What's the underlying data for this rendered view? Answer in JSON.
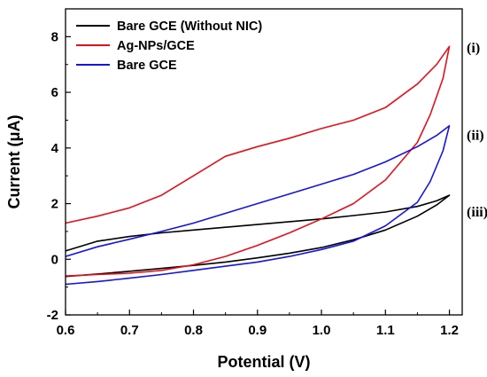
{
  "chart_data": {
    "type": "line",
    "title": "",
    "xlabel": "Potential (V)",
    "ylabel": "Current (μA)",
    "xlim": [
      0.6,
      1.22
    ],
    "ylim": [
      -2,
      9
    ],
    "xticks": [
      0.6,
      0.7,
      0.8,
      0.9,
      1.0,
      1.1,
      1.2
    ],
    "xtick_labels": [
      "0.6",
      "0.7",
      "0.8",
      "0.9",
      "1.0",
      "1.1",
      "1.2"
    ],
    "yticks": [
      -2,
      0,
      2,
      4,
      6,
      8
    ],
    "ytick_labels": [
      "-2",
      "0",
      "2",
      "4",
      "6",
      "8"
    ],
    "grid": false,
    "legend": "top-left",
    "series": [
      {
        "name": "Bare GCE (Without NIC)",
        "color": "#000000",
        "x": [
          0.6,
          0.65,
          0.7,
          0.75,
          0.8,
          0.85,
          0.9,
          0.95,
          1.0,
          1.05,
          1.1,
          1.15,
          1.18,
          1.2,
          1.18,
          1.15,
          1.1,
          1.05,
          1.0,
          0.95,
          0.9,
          0.85,
          0.8,
          0.75,
          0.7,
          0.65,
          0.6
        ],
        "y": [
          0.3,
          0.65,
          0.82,
          0.95,
          1.05,
          1.15,
          1.25,
          1.35,
          1.45,
          1.57,
          1.7,
          1.9,
          2.1,
          2.3,
          1.95,
          1.55,
          1.05,
          0.7,
          0.42,
          0.22,
          0.05,
          -0.1,
          -0.22,
          -0.33,
          -0.43,
          -0.53,
          -0.62
        ]
      },
      {
        "name": "Ag-NPs/GCE",
        "color": "#e8101a",
        "x": [
          0.6,
          0.65,
          0.7,
          0.75,
          0.8,
          0.85,
          0.9,
          0.95,
          1.0,
          1.05,
          1.1,
          1.15,
          1.18,
          1.2,
          1.19,
          1.17,
          1.15,
          1.1,
          1.05,
          1.0,
          0.95,
          0.9,
          0.85,
          0.8,
          0.75,
          0.7,
          0.65,
          0.6
        ],
        "y": [
          1.3,
          1.55,
          1.85,
          2.3,
          3.0,
          3.7,
          4.05,
          4.35,
          4.7,
          5.0,
          5.45,
          6.3,
          7.0,
          7.65,
          6.5,
          5.2,
          4.2,
          2.85,
          2.0,
          1.45,
          0.95,
          0.5,
          0.1,
          -0.2,
          -0.4,
          -0.5,
          -0.55,
          -0.6
        ]
      },
      {
        "name": "Bare GCE",
        "color": "#1414e6",
        "x": [
          0.6,
          0.65,
          0.7,
          0.75,
          0.8,
          0.85,
          0.9,
          0.95,
          1.0,
          1.05,
          1.1,
          1.15,
          1.18,
          1.2,
          1.19,
          1.17,
          1.15,
          1.1,
          1.05,
          1.0,
          0.95,
          0.9,
          0.85,
          0.8,
          0.75,
          0.7,
          0.65,
          0.6
        ],
        "y": [
          0.1,
          0.45,
          0.72,
          1.0,
          1.3,
          1.65,
          2.0,
          2.35,
          2.7,
          3.05,
          3.5,
          4.05,
          4.45,
          4.8,
          3.9,
          2.8,
          2.05,
          1.2,
          0.65,
          0.35,
          0.1,
          -0.1,
          -0.25,
          -0.4,
          -0.55,
          -0.68,
          -0.8,
          -0.9
        ]
      }
    ],
    "annotations": [
      {
        "text": "(i)",
        "x": 1.227,
        "y": 7.6
      },
      {
        "text": "(ii)",
        "x": 1.227,
        "y": 4.45
      },
      {
        "text": "(iii)",
        "x": 1.227,
        "y": 1.7
      }
    ]
  }
}
